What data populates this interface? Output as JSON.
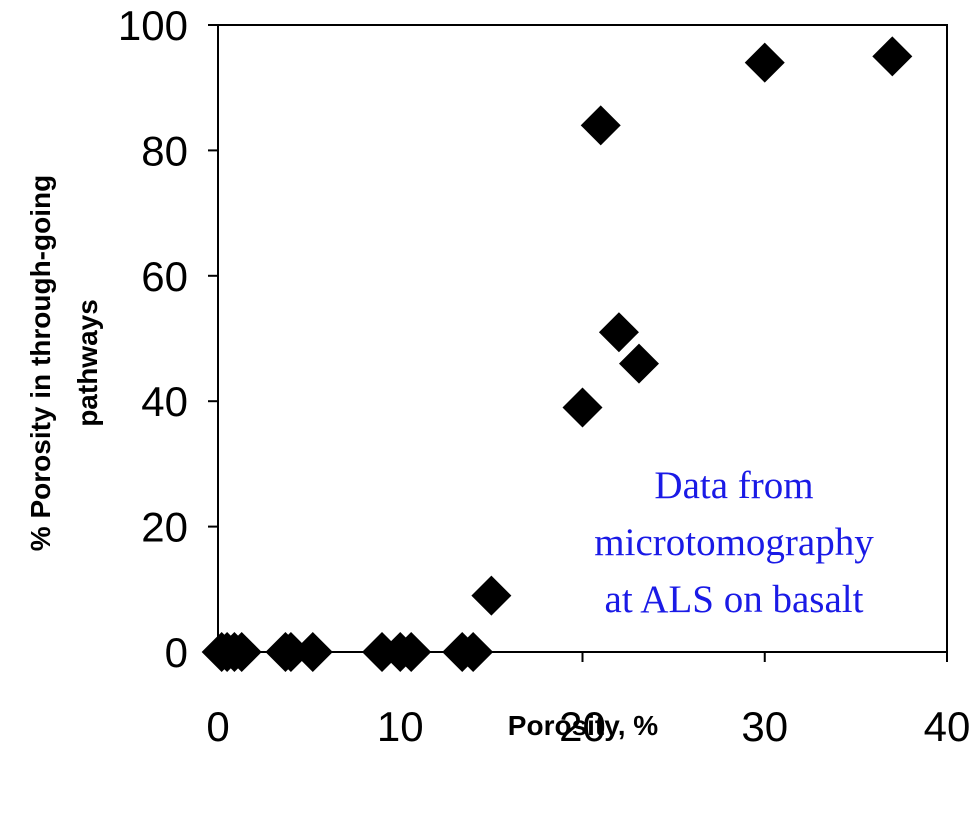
{
  "chart_data": {
    "type": "scatter",
    "xlabel": "Porosity, %",
    "ylabel_lines": [
      "% Porosity in through-going",
      "pathways"
    ],
    "xlim": [
      0,
      40
    ],
    "ylim": [
      0,
      100
    ],
    "xticks": [
      "0",
      "10",
      "20",
      "30",
      "40"
    ],
    "yticks": [
      "0",
      "20",
      "40",
      "60",
      "80",
      "100"
    ],
    "grid": false,
    "legend": "none",
    "marker": "diamond",
    "marker_color": "#000000",
    "series": [
      {
        "x": [
          0.2,
          0.5,
          0.9,
          1.3,
          3.7,
          4.0,
          5.2,
          9.0,
          10.0,
          10.6,
          13.4,
          14.0,
          15.0,
          20.0,
          21.0,
          22.0,
          23.1,
          30.0,
          37.0
        ],
        "y": [
          0,
          0,
          0,
          0,
          0,
          0,
          0,
          0,
          0,
          0,
          0,
          0,
          9,
          39,
          84,
          51,
          46,
          94,
          95
        ]
      }
    ],
    "annotation_lines": [
      "Data from",
      "microtomography",
      "at ALS on basalt"
    ],
    "annotation_color": "#1a1ae6"
  }
}
